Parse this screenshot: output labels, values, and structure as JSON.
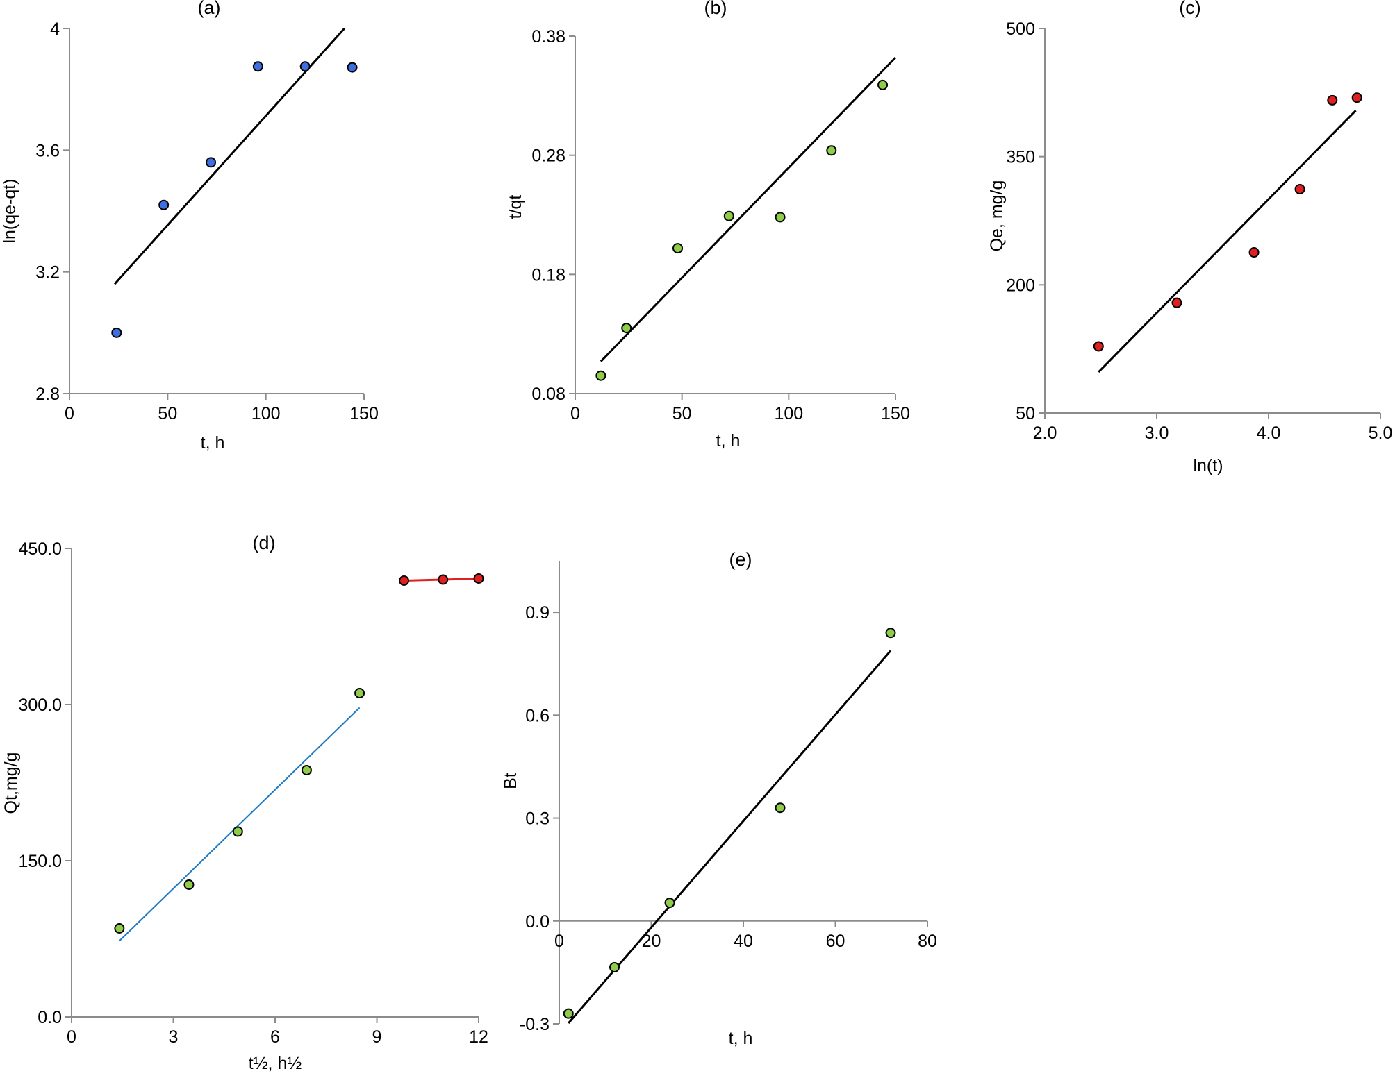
{
  "colors": {
    "axis": "#8c8c8c",
    "fit": "#000000",
    "blue_marker": "#3e6fe0",
    "green_marker": "#8fcc4a",
    "red_marker": "#e02020",
    "blue_fit": "#1a78c2",
    "red_fit": "#e02020"
  },
  "chart_data": [
    {
      "id": "a",
      "type": "scatter",
      "title": "(a)",
      "xlabel": "t, h",
      "ylabel": "ln(qe-qt)",
      "xlim": [
        0,
        150
      ],
      "ylim": [
        2.8,
        4
      ],
      "x_ticks": [
        "0",
        "50",
        "100",
        "150"
      ],
      "y_ticks": [
        "2.8",
        "3.2",
        "3.6",
        "4"
      ],
      "grid": false,
      "marker_color": "blue",
      "series": [
        {
          "x": [
            24,
            48,
            72,
            96,
            120,
            144
          ],
          "y": [
            3.0,
            3.42,
            3.56,
            3.875,
            3.875,
            3.872
          ]
        }
      ],
      "fit_line": {
        "x": [
          23,
          140
        ],
        "y": [
          3.16,
          4.0
        ]
      }
    },
    {
      "id": "b",
      "type": "scatter",
      "title": "(b)",
      "xlabel": "t, h",
      "ylabel": "t/qt",
      "xlim": [
        0,
        150
      ],
      "ylim": [
        0.08,
        0.38
      ],
      "x_ticks": [
        "0",
        "50",
        "100",
        "150"
      ],
      "y_ticks": [
        "0.08",
        "0.18",
        "0.28",
        "0.38"
      ],
      "grid": false,
      "marker_color": "green",
      "series": [
        {
          "x": [
            12,
            24,
            48,
            72,
            96,
            120,
            144
          ],
          "y": [
            0.095,
            0.135,
            0.202,
            0.229,
            0.228,
            0.284,
            0.339
          ]
        }
      ],
      "fit_line": {
        "x": [
          12,
          150
        ],
        "y": [
          0.107,
          0.362
        ]
      }
    },
    {
      "id": "c",
      "type": "scatter",
      "title": "(c)",
      "xlabel": "ln(t)",
      "ylabel": "Qe, mg/g",
      "xlim": [
        2.0,
        5.0
      ],
      "ylim": [
        50,
        500
      ],
      "x_ticks": [
        "2.0",
        "3.0",
        "4.0",
        "5.0"
      ],
      "y_ticks": [
        "50",
        "200",
        "350",
        "500"
      ],
      "grid": false,
      "marker_color": "red",
      "series": [
        {
          "x": [
            2.48,
            3.18,
            3.87,
            4.28,
            4.57,
            4.79
          ],
          "y": [
            128,
            179,
            238,
            312,
            416,
            419
          ]
        }
      ],
      "fit_line": {
        "x": [
          2.48,
          4.78
        ],
        "y": [
          98,
          404
        ]
      }
    },
    {
      "id": "d",
      "type": "scatter",
      "title": "(d)",
      "xlabel": "t½, h½",
      "ylabel": "Qt,mg/g",
      "xlim": [
        0,
        12
      ],
      "ylim": [
        0,
        450
      ],
      "x_ticks": [
        "0",
        "3",
        "6",
        "9",
        "12"
      ],
      "y_ticks": [
        "0.0",
        "150.0",
        "300.0",
        "450.0"
      ],
      "grid": false,
      "series": [
        {
          "marker_color": "green",
          "x": [
            1.41,
            3.46,
            4.9,
            6.93,
            8.49
          ],
          "y": [
            85,
            127,
            178,
            237,
            311
          ]
        },
        {
          "marker_color": "red",
          "x": [
            9.8,
            10.95,
            12.0
          ],
          "y": [
            419,
            420,
            421
          ],
          "connected": true
        }
      ],
      "fit_line": {
        "x": [
          1.41,
          8.49
        ],
        "y": [
          73,
          297
        ]
      }
    },
    {
      "id": "e",
      "type": "scatter",
      "title": "(e)",
      "xlabel": "t, h",
      "ylabel": "Bt",
      "xlim": [
        0,
        80
      ],
      "ylim": [
        -0.3,
        1.05
      ],
      "x_ticks": [
        "0",
        "20",
        "40",
        "60",
        "80"
      ],
      "y_ticks": [
        "-0.3",
        "0.0",
        "0.3",
        "0.6",
        "0.9"
      ],
      "grid": false,
      "marker_color": "green",
      "series": [
        {
          "x": [
            2,
            12,
            24,
            48,
            72
          ],
          "y": [
            -0.27,
            -0.135,
            0.053,
            0.33,
            0.84
          ]
        }
      ],
      "fit_line": {
        "x": [
          2,
          72
        ],
        "y": [
          -0.298,
          0.788
        ]
      }
    }
  ]
}
